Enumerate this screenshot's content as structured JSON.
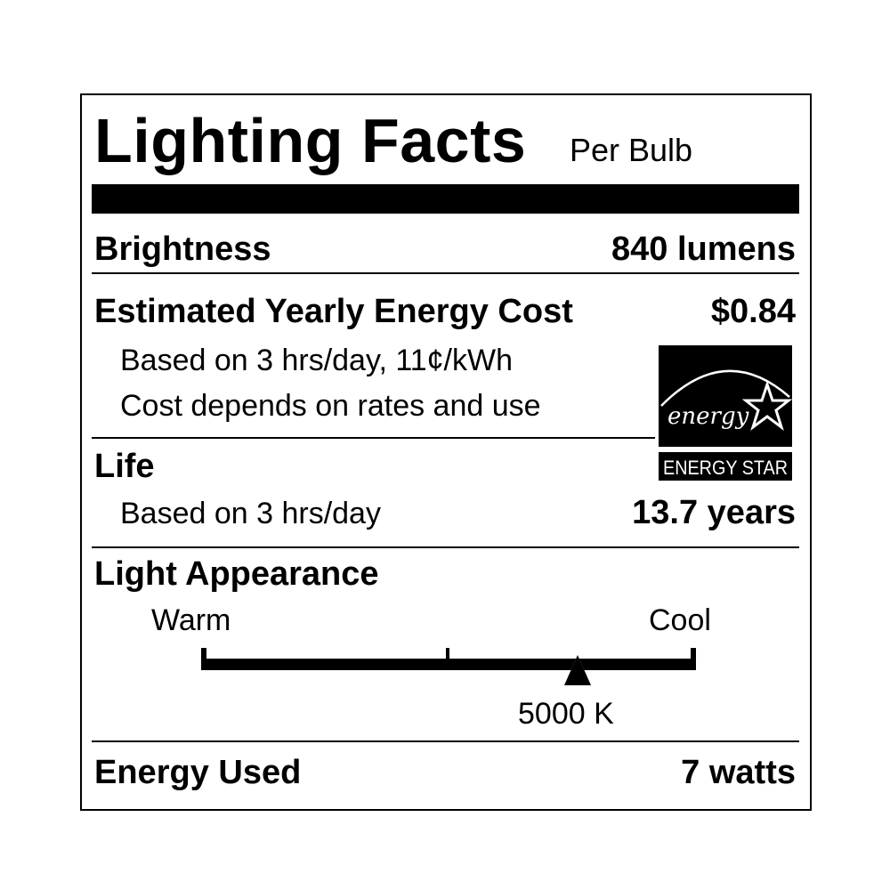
{
  "title": "Lighting Facts",
  "subtitle": "Per Bulb",
  "brightness": {
    "label": "Brightness",
    "value": "840 lumens"
  },
  "energy_cost": {
    "label": "Estimated Yearly Energy Cost",
    "value": "$0.84",
    "note1": "Based on 3 hrs/day, 11¢/kWh",
    "note2": "Cost depends on rates and use"
  },
  "energy_star": {
    "script_text": "energy",
    "label": "ENERGY STAR"
  },
  "life": {
    "label": "Life",
    "note": "Based on 3 hrs/day",
    "value": "13.7 years"
  },
  "light_appearance": {
    "label": "Light Appearance",
    "warm_label": "Warm",
    "cool_label": "Cool",
    "value": "5000 K",
    "scale_position_fraction": 0.76
  },
  "energy_used": {
    "label": "Energy Used",
    "value": "7 watts"
  }
}
